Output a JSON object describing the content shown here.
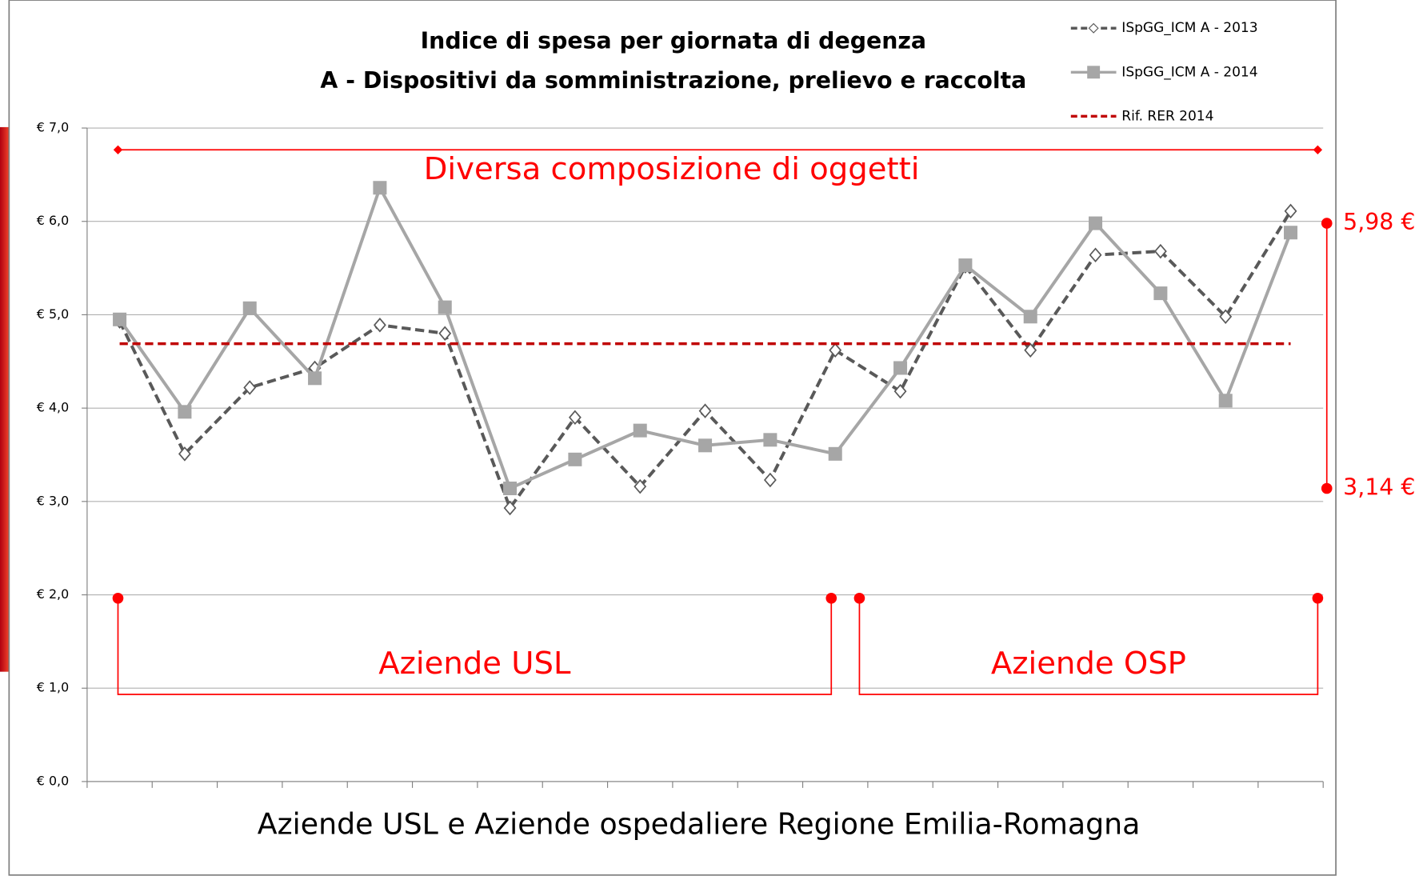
{
  "chart_data": {
    "type": "line",
    "title": [
      "Indice di spesa per giornata di degenza",
      "A - Dispositivi da somministrazione, prelievo e raccolta"
    ],
    "xlabel": "Aziende USL e Aziende ospedaliere Regione Emilia-Romagna",
    "categories": [
      null,
      null,
      null,
      null,
      null,
      null,
      null,
      null,
      null,
      null,
      null,
      null,
      null,
      null,
      null,
      null,
      null,
      null,
      null
    ],
    "series": [
      {
        "name": "ISpGG_ICM A - 2013",
        "color": "#595959",
        "style": "dashed-diamond",
        "values": [
          4.93,
          3.51,
          4.22,
          4.43,
          4.89,
          4.8,
          2.93,
          3.9,
          3.16,
          3.97,
          3.23,
          4.62,
          4.18,
          5.52,
          4.62,
          5.64,
          5.68,
          4.98,
          6.11
        ]
      },
      {
        "name": "ISpGG_ICM A - 2014",
        "color": "#a6a6a6",
        "style": "solid-square",
        "values": [
          4.95,
          3.96,
          5.07,
          4.32,
          6.36,
          5.08,
          3.14,
          3.45,
          3.76,
          3.6,
          3.66,
          3.51,
          4.43,
          5.53,
          4.98,
          5.98,
          5.23,
          4.08,
          5.88
        ]
      },
      {
        "name": "Rif. RER 2014",
        "color": "#c00000",
        "style": "dashed",
        "values": [
          4.69,
          4.69,
          4.69,
          4.69,
          4.69,
          4.69,
          4.69,
          4.69,
          4.69,
          4.69,
          4.69,
          4.69,
          4.69,
          4.69,
          4.69,
          4.69,
          4.69,
          4.69,
          4.69
        ]
      }
    ],
    "ylim": [
      0,
      7
    ],
    "yticks": [
      {
        "value": 0,
        "label": "€ 0,0"
      },
      {
        "value": 1,
        "label": "€ 1,0"
      },
      {
        "value": 2,
        "label": "€ 2,0"
      },
      {
        "value": 3,
        "label": "€ 3,0"
      },
      {
        "value": 4,
        "label": "€ 4,0"
      },
      {
        "value": 5,
        "label": "€ 5,0"
      },
      {
        "value": 6,
        "label": "€ 6,0"
      },
      {
        "value": 7,
        "label": "€ 7,0"
      }
    ],
    "grid": true,
    "legend": "top-right",
    "annotations": {
      "top_span": "Diversa composizione di oggetti",
      "groups": [
        "Aziende USL",
        "Aziende OSP"
      ],
      "range_max": {
        "value": 5.98,
        "label": "5,98 €"
      },
      "range_min": {
        "value": 3.14,
        "label": "3,14 €"
      }
    }
  }
}
